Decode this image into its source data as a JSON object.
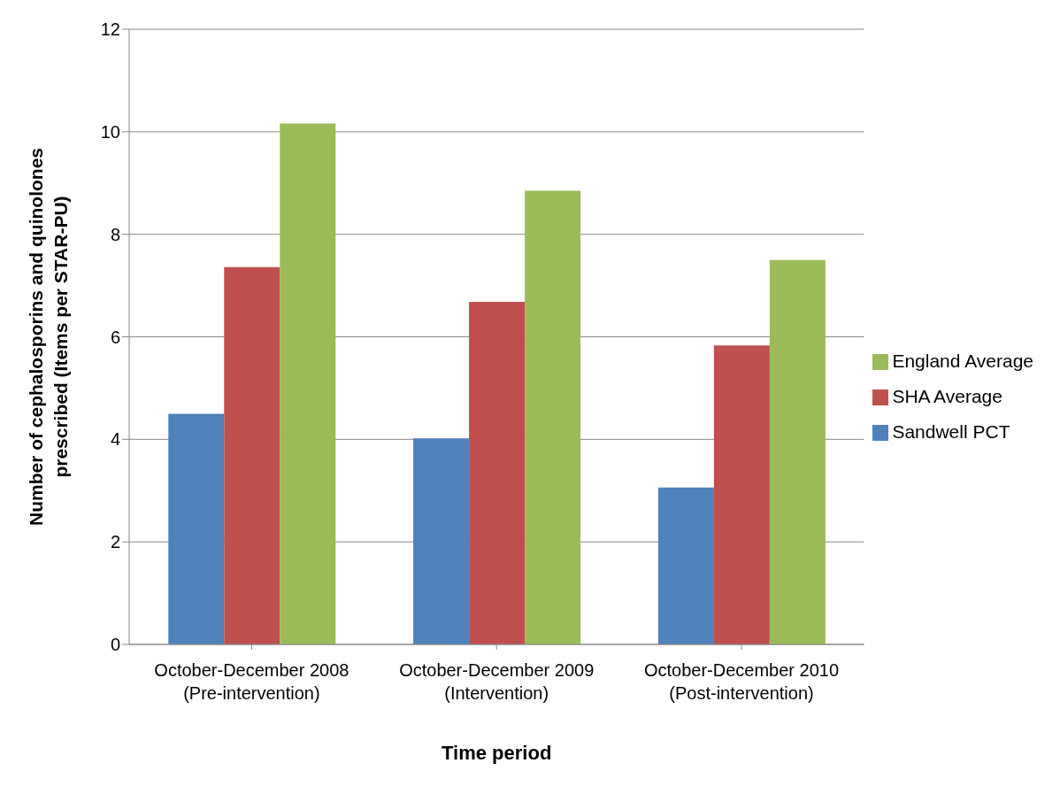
{
  "chart_data": {
    "type": "bar",
    "xlabel": "Time period",
    "ylabel": "Number of cephalosporins and quinolones prescribed (Items per STAR-PU)",
    "categories": [
      "October-December 2008 (Pre-intervention)",
      "October-December 2009 (Intervention)",
      "October-December 2010 (Post-intervention)"
    ],
    "series": [
      {
        "name": "Sandwell PCT",
        "color": "#4f81bd",
        "values": [
          4.5,
          4.02,
          3.06
        ]
      },
      {
        "name": "SHA Average",
        "color": "#c0504d",
        "values": [
          7.36,
          6.68,
          5.83
        ]
      },
      {
        "name": "England Average",
        "color": "#9bbb59",
        "values": [
          10.16,
          8.85,
          7.5
        ]
      }
    ],
    "ylim": [
      0,
      12
    ],
    "yticks": [
      0,
      2,
      4,
      6,
      8,
      10,
      12
    ],
    "grid": "y",
    "legend": "right"
  }
}
